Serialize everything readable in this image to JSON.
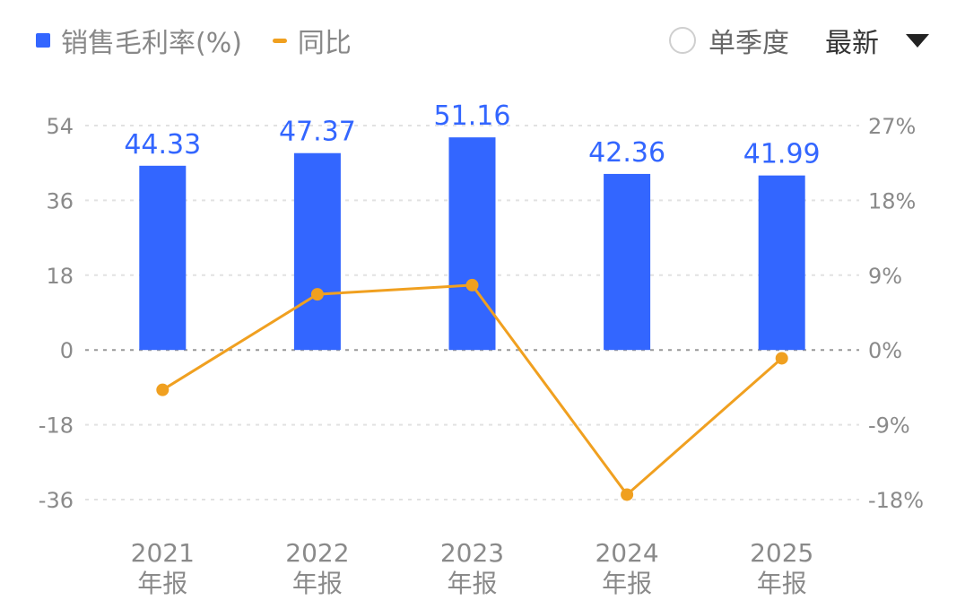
{
  "legend": {
    "bar_label": "销售毛利率(%)",
    "line_label": "同比"
  },
  "controls": {
    "toggle_label": "单季度",
    "dropdown_label": "最新"
  },
  "colors": {
    "bar": "#3366ff",
    "line": "#f0a020",
    "bar_label": "#3366ff",
    "axis_text": "#8a8a8a",
    "grid": "#e2e2e2",
    "zero_line": "#999999"
  },
  "chart_data": {
    "type": "bar",
    "categories": [
      {
        "year": "2021",
        "suffix": "年报"
      },
      {
        "year": "2022",
        "suffix": "年报"
      },
      {
        "year": "2023",
        "suffix": "年报"
      },
      {
        "year": "2024",
        "suffix": "年报"
      },
      {
        "year": "2025",
        "suffix": "年报"
      }
    ],
    "series": [
      {
        "name": "销售毛利率(%)",
        "type": "bar",
        "axis": "left",
        "values": [
          44.33,
          47.37,
          51.16,
          42.36,
          41.99
        ],
        "labels": [
          "44.33",
          "47.37",
          "51.16",
          "42.36",
          "41.99"
        ]
      },
      {
        "name": "同比",
        "type": "line",
        "axis": "right",
        "values": [
          -4.8,
          6.7,
          7.8,
          -17.4,
          -1.0
        ]
      }
    ],
    "left_axis": {
      "ticks": [
        54,
        36,
        18,
        0,
        -18,
        -36
      ],
      "tick_labels": [
        "54",
        "36",
        "18",
        "0",
        "-18",
        "-36"
      ],
      "range": [
        -36,
        54
      ]
    },
    "right_axis": {
      "ticks": [
        27,
        18,
        9,
        0,
        -9,
        -18
      ],
      "tick_labels": [
        "27%",
        "18%",
        "9%",
        "0%",
        "-9%",
        "-18%"
      ],
      "range": [
        -18,
        27
      ]
    },
    "grid": true,
    "legend_position": "top-left"
  }
}
